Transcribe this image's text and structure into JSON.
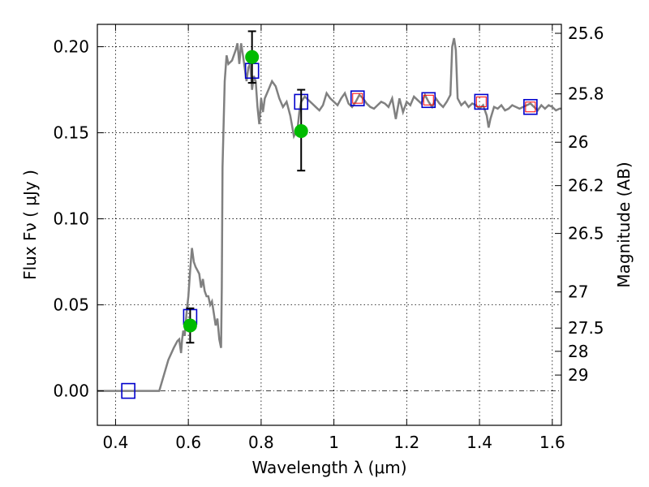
{
  "chart_data": {
    "type": "scatter",
    "title": "",
    "xlabel": "Wavelength  λ (μm)",
    "ylabel": "Flux  Fν ( μJy )",
    "ylabel_right": "Magnitude (AB)",
    "xlim": [
      0.35,
      1.625
    ],
    "ylim": [
      -0.02,
      0.213
    ],
    "x_ticks": [
      0.4,
      0.6,
      0.8,
      1.0,
      1.2,
      1.4,
      1.6
    ],
    "x_tick_labels": [
      "0.4",
      "0.6",
      "0.8",
      "1",
      "1.2",
      "1.4",
      "1.6"
    ],
    "y_ticks": [
      0.0,
      0.05,
      0.1,
      0.15,
      0.2
    ],
    "y_tick_labels": [
      "0.00",
      "0.05",
      "0.10",
      "0.15",
      "0.20"
    ],
    "right_ticks": [
      {
        "flux": 0.2078,
        "label": "25.6"
      },
      {
        "flux": 0.1726,
        "label": "25.8"
      },
      {
        "flux": 0.1445,
        "label": "26"
      },
      {
        "flux": 0.1193,
        "label": "26.2"
      },
      {
        "flux": 0.0915,
        "label": "26.5"
      },
      {
        "flux": 0.0575,
        "label": "27"
      },
      {
        "flux": 0.0365,
        "label": "27.5"
      },
      {
        "flux": 0.023,
        "label": "28"
      },
      {
        "flux": 0.0092,
        "label": "29"
      }
    ],
    "grid": true,
    "series": [
      {
        "kind": "line",
        "color": "#808080",
        "x": [
          0.35,
          0.4,
          0.45,
          0.5,
          0.52,
          0.545,
          0.56,
          0.57,
          0.575,
          0.58,
          0.583,
          0.586,
          0.59,
          0.595,
          0.6,
          0.605,
          0.61,
          0.615,
          0.62,
          0.625,
          0.63,
          0.635,
          0.64,
          0.645,
          0.65,
          0.655,
          0.66,
          0.665,
          0.67,
          0.675,
          0.68,
          0.685,
          0.69,
          0.692,
          0.694,
          0.7,
          0.705,
          0.71,
          0.72,
          0.73,
          0.735,
          0.74,
          0.745,
          0.75,
          0.76,
          0.765,
          0.77,
          0.775,
          0.78,
          0.785,
          0.79,
          0.795,
          0.8,
          0.805,
          0.81,
          0.82,
          0.83,
          0.84,
          0.85,
          0.86,
          0.87,
          0.88,
          0.89,
          0.9,
          0.905,
          0.91,
          0.92,
          0.93,
          0.94,
          0.95,
          0.96,
          0.97,
          0.98,
          0.99,
          1.0,
          1.01,
          1.02,
          1.03,
          1.04,
          1.05,
          1.06,
          1.07,
          1.08,
          1.09,
          1.1,
          1.11,
          1.12,
          1.13,
          1.14,
          1.15,
          1.16,
          1.17,
          1.18,
          1.19,
          1.2,
          1.21,
          1.22,
          1.23,
          1.24,
          1.25,
          1.26,
          1.27,
          1.28,
          1.29,
          1.3,
          1.31,
          1.32,
          1.325,
          1.33,
          1.335,
          1.34,
          1.35,
          1.36,
          1.37,
          1.38,
          1.39,
          1.4,
          1.41,
          1.42,
          1.425,
          1.43,
          1.44,
          1.45,
          1.46,
          1.47,
          1.48,
          1.49,
          1.5,
          1.51,
          1.52,
          1.53,
          1.54,
          1.55,
          1.56,
          1.57,
          1.58,
          1.59,
          1.6,
          1.61,
          1.62,
          1.625
        ],
        "y": [
          0,
          0,
          0,
          0,
          0,
          0.018,
          0.025,
          0.029,
          0.03,
          0.022,
          0.03,
          0.035,
          0.032,
          0.045,
          0.055,
          0.07,
          0.083,
          0.075,
          0.072,
          0.07,
          0.068,
          0.06,
          0.065,
          0.058,
          0.055,
          0.055,
          0.05,
          0.052,
          0.045,
          0.038,
          0.042,
          0.03,
          0.025,
          0.06,
          0.13,
          0.18,
          0.195,
          0.19,
          0.192,
          0.198,
          0.202,
          0.19,
          0.202,
          0.195,
          0.18,
          0.188,
          0.19,
          0.175,
          0.183,
          0.18,
          0.165,
          0.155,
          0.17,
          0.162,
          0.17,
          0.175,
          0.18,
          0.177,
          0.17,
          0.165,
          0.168,
          0.16,
          0.148,
          0.152,
          0.162,
          0.168,
          0.171,
          0.169,
          0.167,
          0.165,
          0.163,
          0.166,
          0.173,
          0.17,
          0.168,
          0.166,
          0.17,
          0.173,
          0.167,
          0.165,
          0.168,
          0.172,
          0.17,
          0.167,
          0.165,
          0.164,
          0.166,
          0.168,
          0.167,
          0.165,
          0.17,
          0.158,
          0.17,
          0.162,
          0.168,
          0.166,
          0.171,
          0.169,
          0.167,
          0.172,
          0.168,
          0.165,
          0.17,
          0.167,
          0.165,
          0.168,
          0.172,
          0.2,
          0.205,
          0.198,
          0.17,
          0.166,
          0.168,
          0.165,
          0.167,
          0.166,
          0.164,
          0.166,
          0.16,
          0.153,
          0.158,
          0.165,
          0.164,
          0.166,
          0.163,
          0.164,
          0.166,
          0.165,
          0.164,
          0.165,
          0.166,
          0.167,
          0.165,
          0.163,
          0.166,
          0.164,
          0.166,
          0.165,
          0.163,
          0.164,
          0.164
        ]
      },
      {
        "kind": "model-box",
        "color": "#0000cc",
        "x": [
          0.435,
          0.605,
          0.775,
          0.91,
          1.065,
          1.26,
          1.405,
          1.54
        ],
        "y": [
          0.0,
          0.043,
          0.186,
          0.168,
          0.17,
          0.169,
          0.168,
          0.165
        ]
      },
      {
        "kind": "model-box",
        "color": "#ff0000",
        "x": [
          1.065,
          1.26,
          1.405,
          1.54
        ],
        "y": [
          0.17,
          0.169,
          0.168,
          0.165
        ]
      },
      {
        "kind": "point",
        "color": "#00bb00",
        "x": [
          0.605,
          0.775,
          0.91
        ],
        "y": [
          0.038,
          0.194,
          0.151
        ],
        "yerr_low": [
          0.028,
          0.179,
          0.128
        ],
        "yerr_high": [
          0.048,
          0.209,
          0.175
        ]
      }
    ]
  }
}
